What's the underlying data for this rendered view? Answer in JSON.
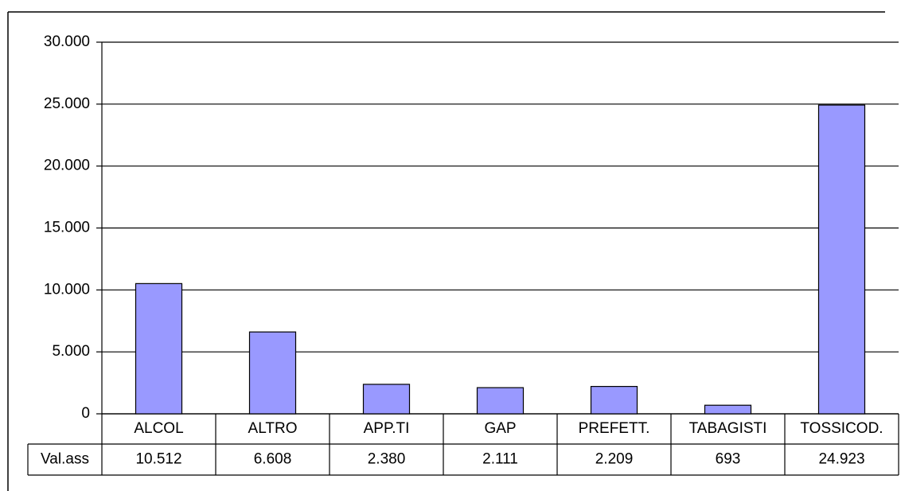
{
  "chart_data": {
    "type": "bar",
    "categories": [
      "ALCOL",
      "ALTRO",
      "APP.TI",
      "GAP",
      "PREFETT.",
      "TABAGISTI",
      "TOSSICOD."
    ],
    "series": [
      {
        "name": "Val.ass",
        "color": "#9999ff",
        "values": [
          10512,
          6608,
          2380,
          2111,
          2209,
          693,
          24923
        ],
        "value_labels": [
          "10.512",
          "6.608",
          "2.380",
          "2.111",
          "2.209",
          "693",
          "24.923"
        ]
      }
    ],
    "ylim": [
      0,
      30000
    ],
    "yticks": [
      {
        "value": 0,
        "label": "0"
      },
      {
        "value": 5000,
        "label": "5.000"
      },
      {
        "value": 10000,
        "label": "10.000"
      },
      {
        "value": 15000,
        "label": "15.000"
      },
      {
        "value": 20000,
        "label": "20.000"
      },
      {
        "value": 25000,
        "label": "25.000"
      },
      {
        "value": 30000,
        "label": "30.000"
      }
    ],
    "grid": true
  }
}
